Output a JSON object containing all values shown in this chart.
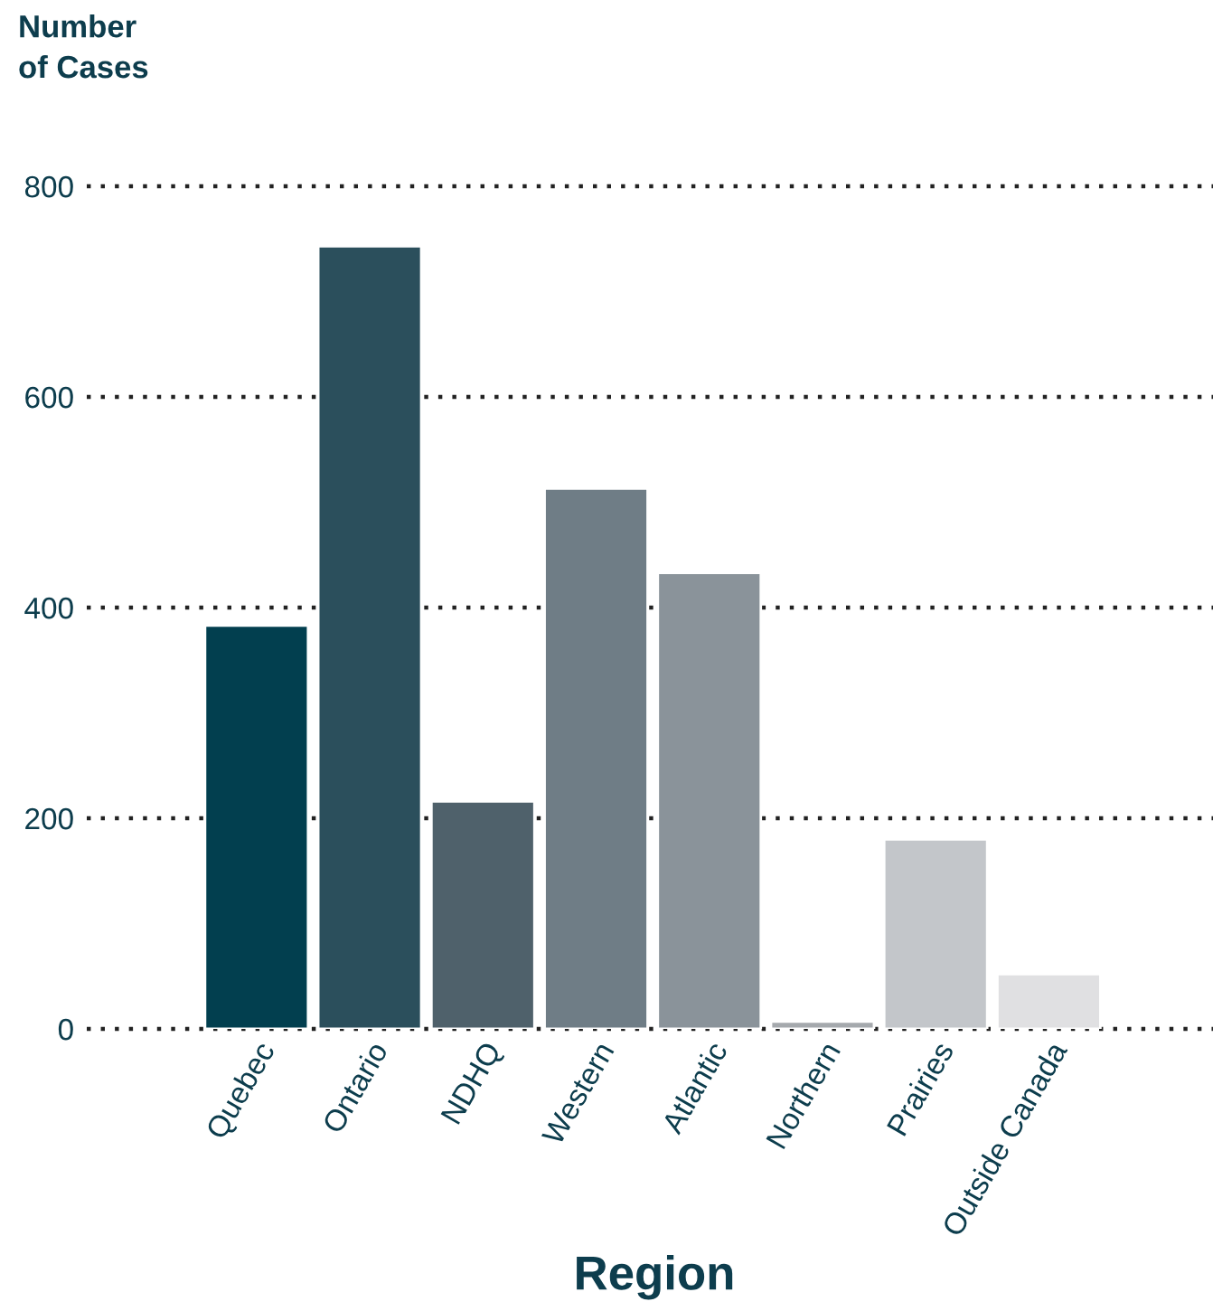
{
  "chart_data": {
    "type": "bar",
    "xlabel": "Region",
    "ylabel": "Number\nof Cases",
    "categories": [
      "Quebec",
      "Ontario",
      "NDHQ",
      "Western",
      "Atlantic",
      "Northern",
      "Prairies",
      "Outside Canada"
    ],
    "values": [
      383,
      743,
      216,
      513,
      433,
      7,
      180,
      52
    ],
    "colors": [
      "#023f4f",
      "#2b4f5c",
      "#4f616b",
      "#6f7d86",
      "#8a939a",
      "#a5a9ad",
      "#c3c6ca",
      "#e0e0e2"
    ],
    "ylim": [
      0,
      800
    ],
    "yticks": [
      0,
      200,
      400,
      600,
      800
    ],
    "grid": "y"
  }
}
